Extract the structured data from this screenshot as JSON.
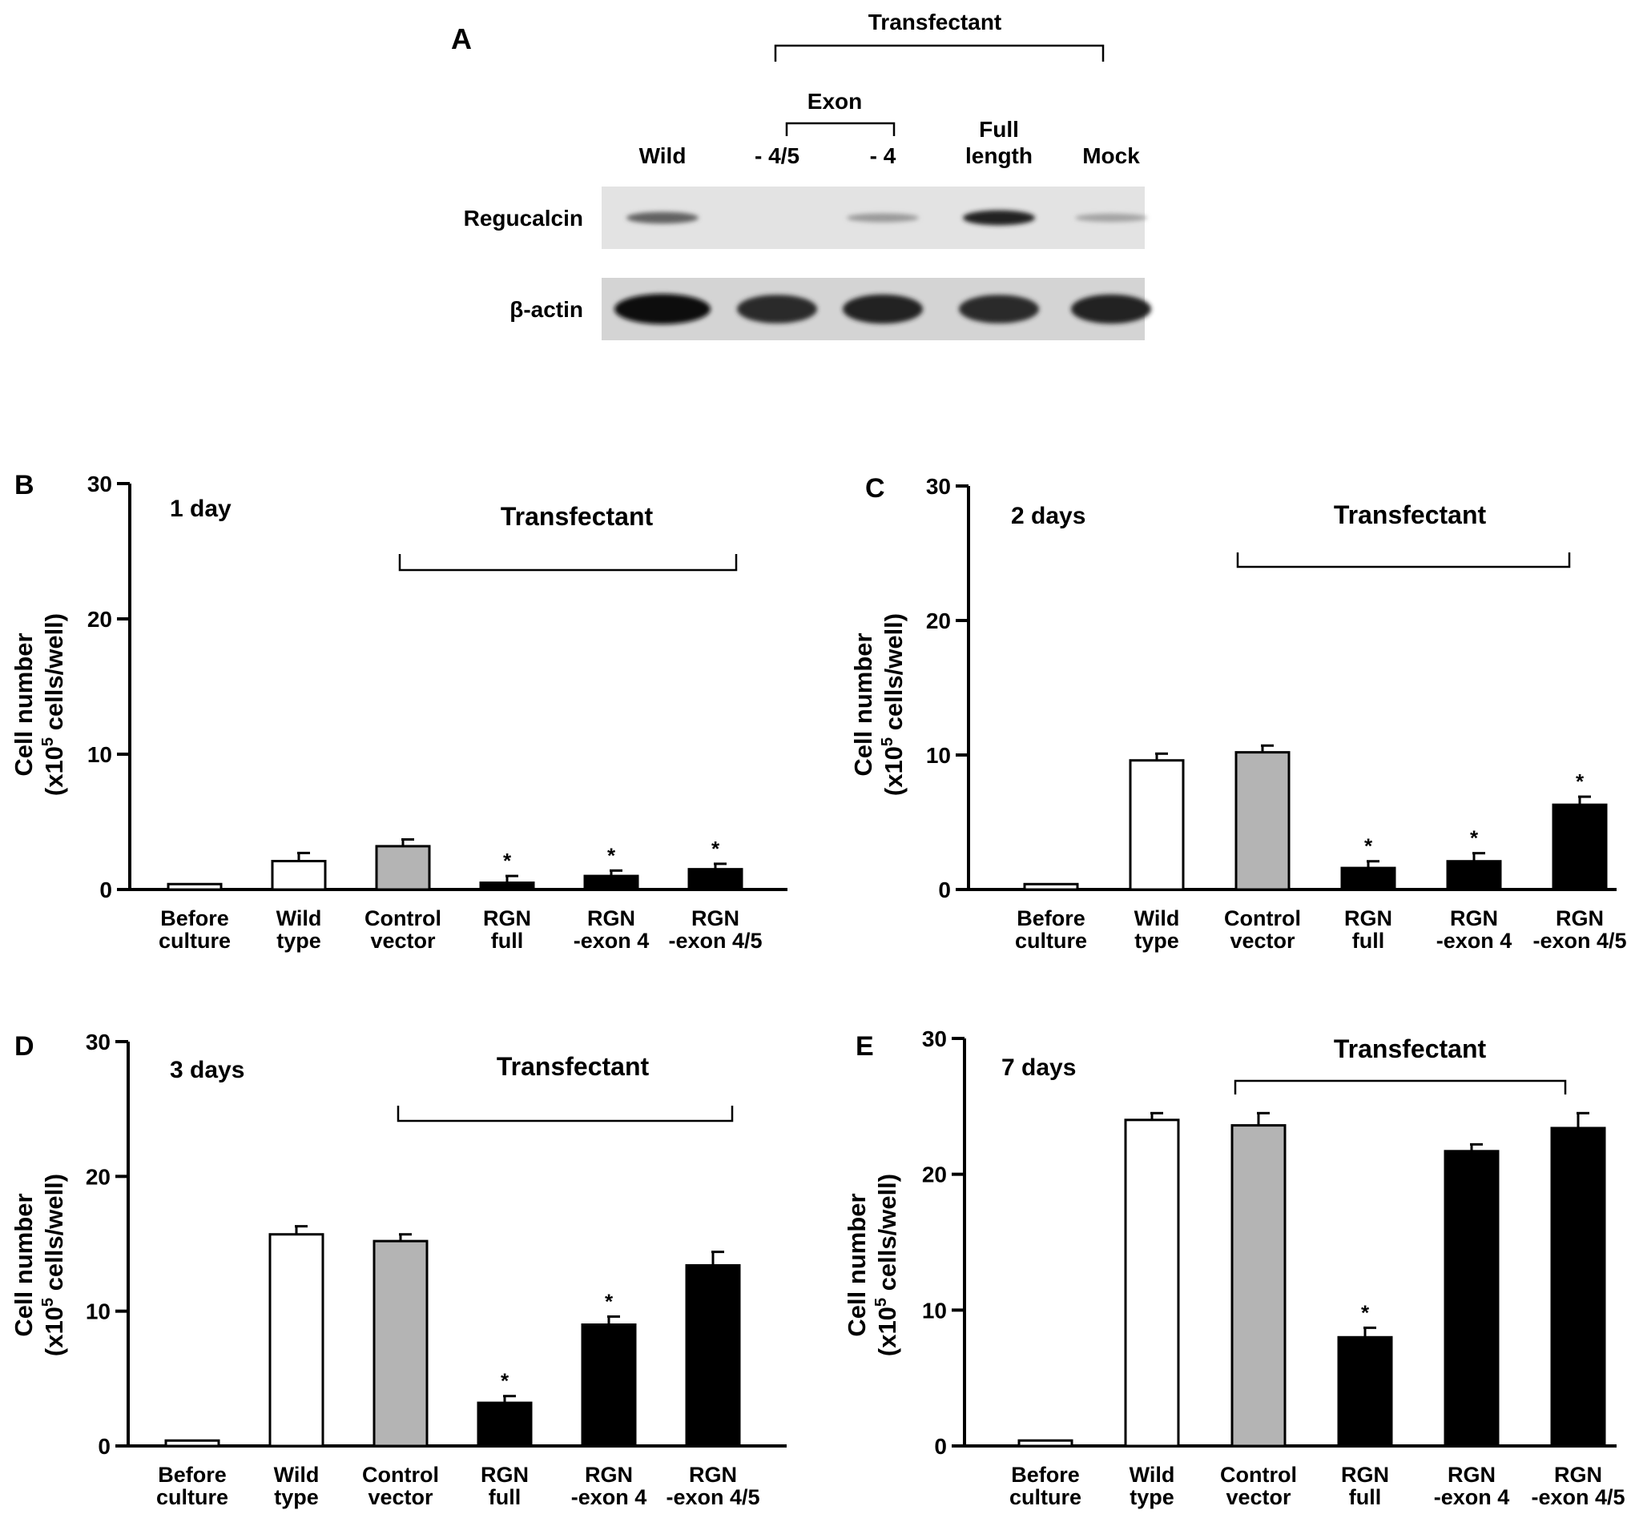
{
  "panel_a": {
    "letter": "A",
    "group_label": "Transfectant",
    "subgroup_label": "Exon",
    "lanes": [
      {
        "lines": [
          "Wild"
        ]
      },
      {
        "lines": [
          "- 4/5"
        ]
      },
      {
        "lines": [
          "- 4"
        ]
      },
      {
        "lines": [
          "Full",
          "length"
        ]
      },
      {
        "lines": [
          "Mock"
        ]
      }
    ],
    "rows": [
      {
        "label": "Regucalcin",
        "intensity": [
          0.55,
          0.0,
          0.25,
          0.9,
          0.2
        ]
      },
      {
        "label": "β-actin",
        "intensity": [
          1.0,
          0.85,
          0.9,
          0.85,
          0.9
        ]
      }
    ]
  },
  "chart_data": [
    {
      "type": "bar",
      "panel": "B",
      "title": "1 day",
      "group_label": "Transfectant",
      "ylabel": "Cell number",
      "ylabel2": "(x10",
      "ylabel_exp": "5",
      "ylabel3": " cells/well)",
      "ylim": [
        0,
        30
      ],
      "yticks": [
        0,
        10,
        20,
        30
      ],
      "categories": [
        [
          "Before",
          "culture"
        ],
        [
          "Wild",
          "type"
        ],
        [
          "Control",
          "vector"
        ],
        [
          "RGN",
          "full"
        ],
        [
          "RGN",
          "-exon 4"
        ],
        [
          "RGN",
          "-exon 4/5"
        ]
      ],
      "values": [
        0.4,
        2.1,
        3.2,
        0.5,
        1.0,
        1.5
      ],
      "errors": [
        0,
        0.6,
        0.5,
        0.5,
        0.4,
        0.4
      ],
      "significant": [
        false,
        false,
        false,
        true,
        true,
        true
      ],
      "fills": [
        "white",
        "white",
        "gray",
        "black",
        "black",
        "black"
      ]
    },
    {
      "type": "bar",
      "panel": "C",
      "title": "2 days",
      "group_label": "Transfectant",
      "ylabel": "Cell number",
      "ylabel2": "(x10",
      "ylabel_exp": "5",
      "ylabel3": " cells/well)",
      "ylim": [
        0,
        30
      ],
      "yticks": [
        0,
        10,
        20,
        30
      ],
      "categories": [
        [
          "Before",
          "culture"
        ],
        [
          "Wild",
          "type"
        ],
        [
          "Control",
          "vector"
        ],
        [
          "RGN",
          "full"
        ],
        [
          "RGN",
          "-exon 4"
        ],
        [
          "RGN",
          "-exon 4/5"
        ]
      ],
      "values": [
        0.4,
        9.6,
        10.2,
        1.6,
        2.1,
        6.3
      ],
      "errors": [
        0,
        0.5,
        0.5,
        0.5,
        0.6,
        0.6
      ],
      "significant": [
        false,
        false,
        false,
        true,
        true,
        true
      ],
      "fills": [
        "white",
        "white",
        "gray",
        "black",
        "black",
        "black"
      ]
    },
    {
      "type": "bar",
      "panel": "D",
      "title": "3 days",
      "group_label": "Transfectant",
      "ylabel": "Cell number",
      "ylabel2": "(x10",
      "ylabel_exp": "5",
      "ylabel3": " cells/well)",
      "ylim": [
        0,
        30
      ],
      "yticks": [
        0,
        10,
        20,
        30
      ],
      "categories": [
        [
          "Before",
          "culture"
        ],
        [
          "Wild",
          "type"
        ],
        [
          "Control",
          "vector"
        ],
        [
          "RGN",
          "full"
        ],
        [
          "RGN",
          "-exon 4"
        ],
        [
          "RGN",
          "-exon 4/5"
        ]
      ],
      "values": [
        0.4,
        15.7,
        15.2,
        3.2,
        9.0,
        13.4
      ],
      "errors": [
        0,
        0.6,
        0.5,
        0.5,
        0.6,
        1.0
      ],
      "significant": [
        false,
        false,
        false,
        true,
        true,
        false
      ],
      "fills": [
        "white",
        "white",
        "gray",
        "black",
        "black",
        "black"
      ]
    },
    {
      "type": "bar",
      "panel": "E",
      "title": "7 days",
      "group_label": "Transfectant",
      "ylabel": "Cell number",
      "ylabel2": "(x10",
      "ylabel_exp": "5",
      "ylabel3": " cells/well)",
      "ylim": [
        0,
        30
      ],
      "yticks": [
        0,
        10,
        20,
        30
      ],
      "categories": [
        [
          "Before",
          "culture"
        ],
        [
          "Wild",
          "type"
        ],
        [
          "Control",
          "vector"
        ],
        [
          "RGN",
          "full"
        ],
        [
          "RGN",
          "-exon 4"
        ],
        [
          "RGN",
          "-exon 4/5"
        ]
      ],
      "values": [
        0.4,
        24.0,
        23.6,
        8.0,
        21.7,
        23.4
      ],
      "errors": [
        0,
        0.5,
        0.9,
        0.7,
        0.5,
        1.1
      ],
      "significant": [
        false,
        false,
        false,
        true,
        false,
        false
      ],
      "fills": [
        "white",
        "white",
        "gray",
        "black",
        "black",
        "black"
      ]
    }
  ],
  "colors": {
    "white": "#ffffff",
    "gray": "#b4b4b4",
    "black": "#000000",
    "blot_bg": "#e3e3e3",
    "blot_bg2": "#d4d4d4"
  },
  "significance_mark": "*"
}
